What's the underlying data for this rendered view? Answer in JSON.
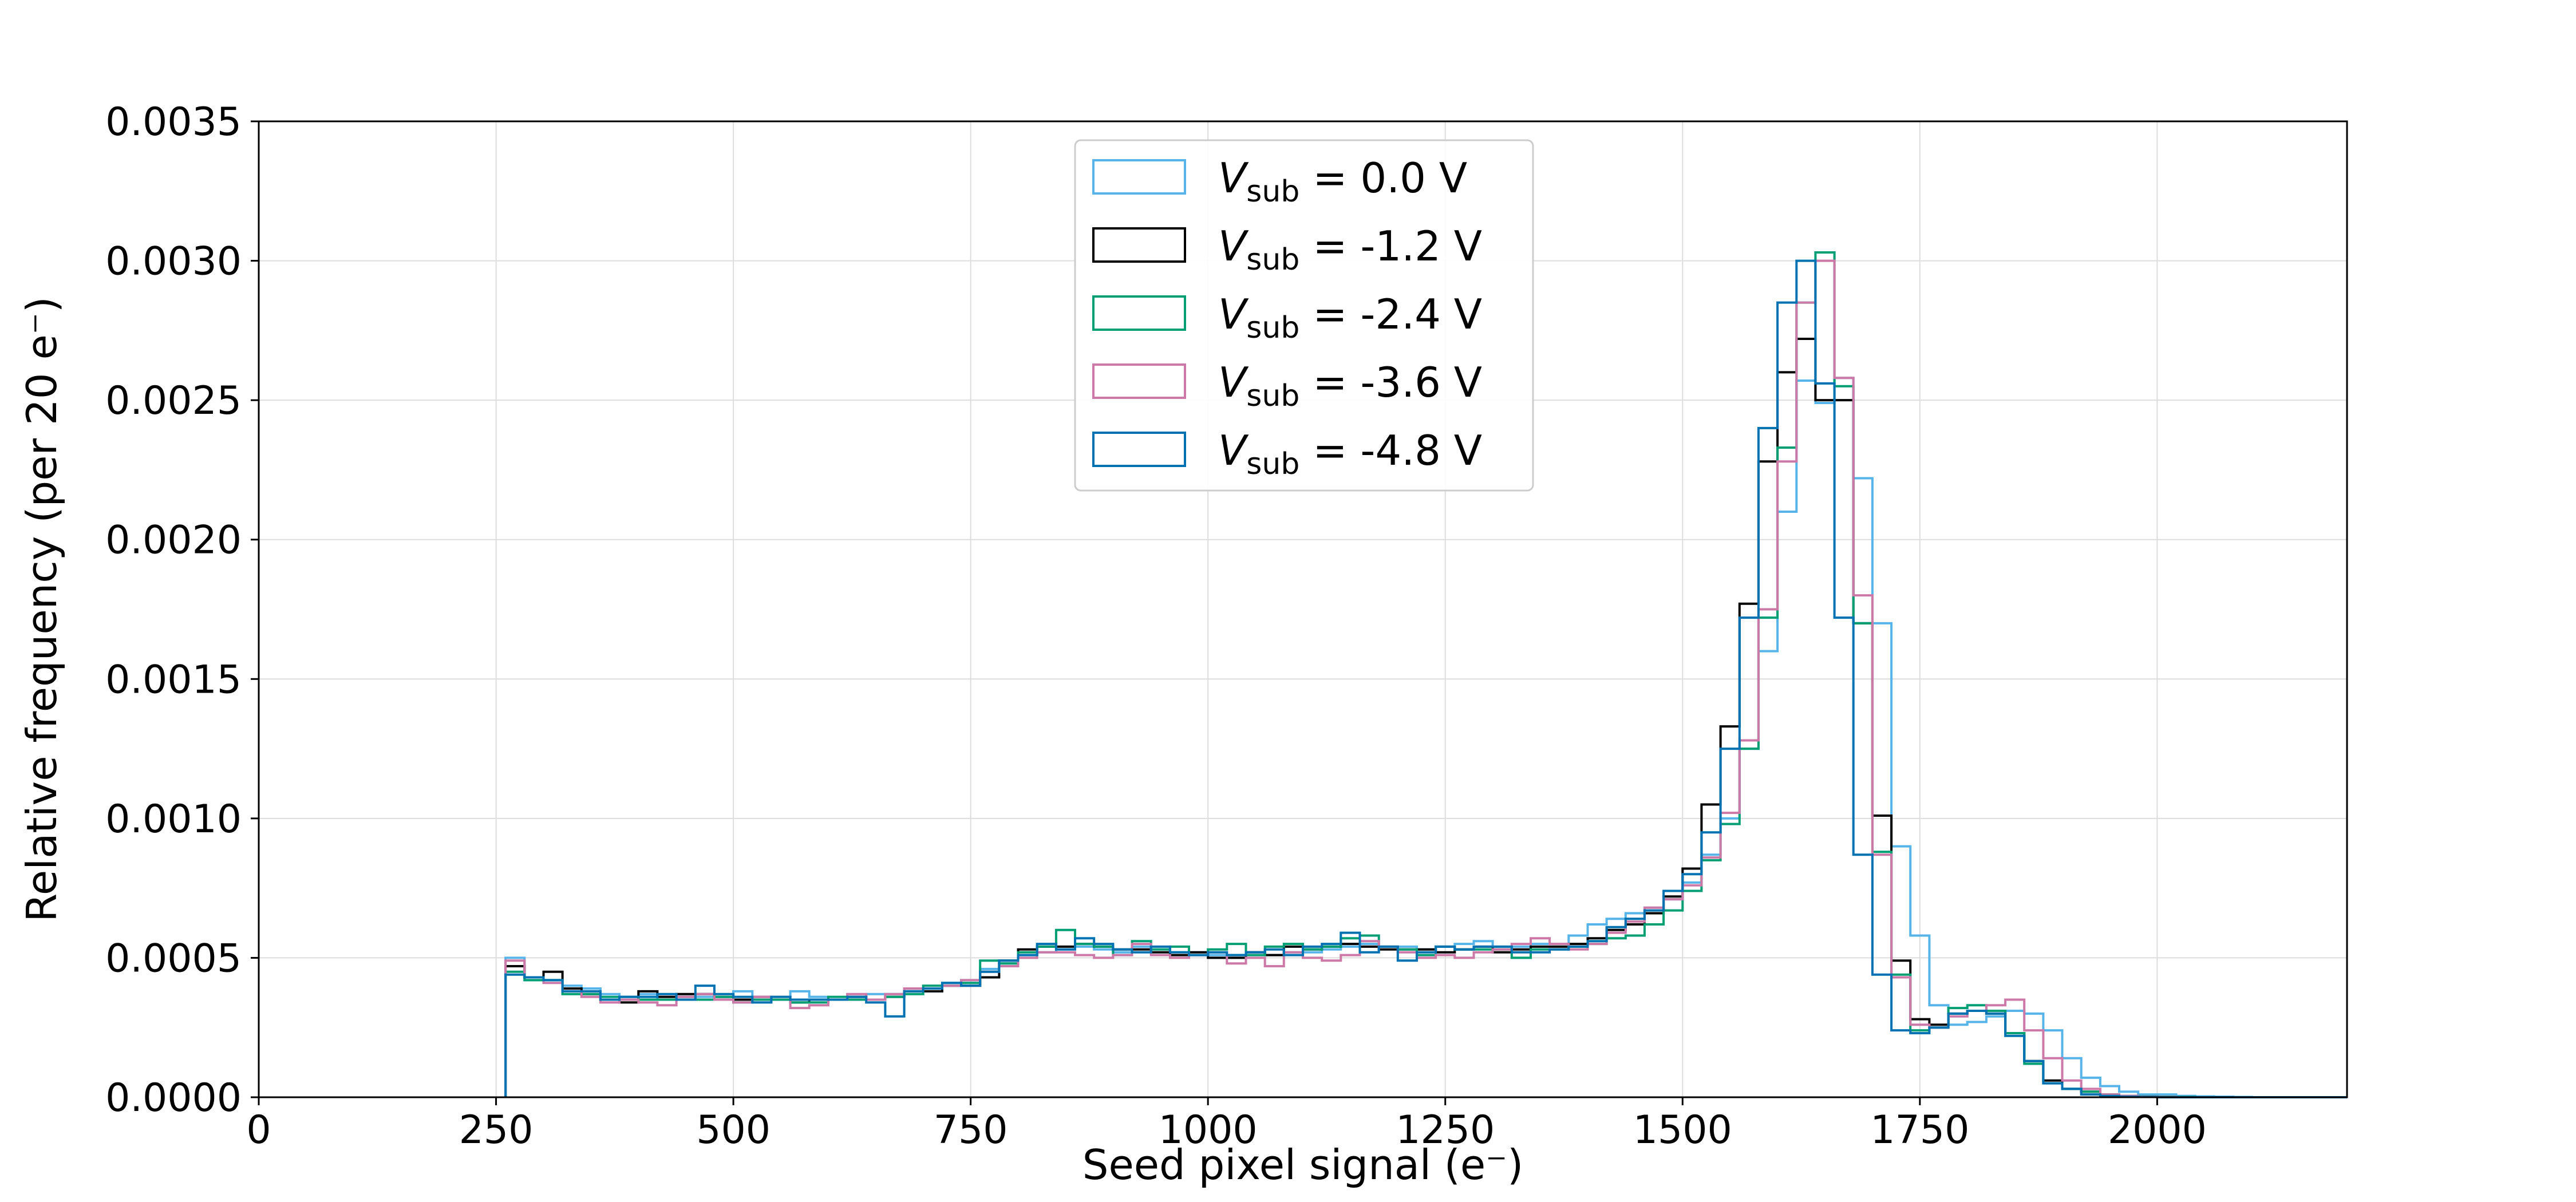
{
  "chart_data": {
    "type": "histogram",
    "xlabel": "Seed pixel signal (e⁻)",
    "ylabel": "Relative frequency (per 20 e⁻)",
    "xlim": [
      0,
      2200
    ],
    "ylim": [
      0,
      0.0035
    ],
    "bin_width": 20,
    "grid": true,
    "legend_position": "top-center",
    "x_ticks": [
      0,
      250,
      500,
      750,
      1000,
      1250,
      1500,
      1750,
      2000
    ],
    "x_tick_labels": [
      "0",
      "250",
      "500",
      "750",
      "1000",
      "1250",
      "1500",
      "1750",
      "2000"
    ],
    "y_ticks": [
      0,
      0.0005,
      0.001,
      0.0015,
      0.002,
      0.0025,
      0.003,
      0.0035
    ],
    "y_tick_labels": [
      "0.0000",
      "0.0005",
      "0.0010",
      "0.0015",
      "0.0020",
      "0.0025",
      "0.0030",
      "0.0035"
    ],
    "x_edges": [
      260,
      280,
      300,
      320,
      340,
      360,
      380,
      400,
      420,
      440,
      460,
      480,
      500,
      520,
      540,
      560,
      580,
      600,
      620,
      640,
      660,
      680,
      700,
      720,
      740,
      760,
      780,
      800,
      820,
      840,
      860,
      880,
      900,
      920,
      940,
      960,
      980,
      1000,
      1020,
      1040,
      1060,
      1080,
      1100,
      1120,
      1140,
      1160,
      1180,
      1200,
      1220,
      1240,
      1260,
      1280,
      1300,
      1320,
      1340,
      1360,
      1380,
      1400,
      1420,
      1440,
      1460,
      1480,
      1500,
      1520,
      1540,
      1560,
      1580,
      1600,
      1620,
      1640,
      1660,
      1680,
      1700,
      1720,
      1740,
      1760,
      1780,
      1800,
      1820,
      1840,
      1860,
      1880,
      1900,
      1920,
      1940,
      1960,
      1980,
      2000,
      2020,
      2040,
      2060,
      2080,
      2100,
      2120,
      2140,
      2160,
      2180,
      2200
    ],
    "series": [
      {
        "name": "V_sub = 0.0 V",
        "label_symbol": "V",
        "label_sub": "sub",
        "label_value": " = 0.0 V",
        "color": "#56b4e9",
        "values": [
          0.0005,
          0.00042,
          0.00042,
          0.0004,
          0.00039,
          0.00037,
          0.00036,
          0.00037,
          0.00035,
          0.00036,
          0.00036,
          0.00036,
          0.00038,
          0.00036,
          0.00035,
          0.00038,
          0.00036,
          0.00035,
          0.00036,
          0.00037,
          0.00037,
          0.00038,
          0.00039,
          0.00041,
          0.00042,
          0.00046,
          0.00048,
          0.00051,
          0.00052,
          0.00053,
          0.00054,
          0.00053,
          0.00052,
          0.00054,
          0.00053,
          0.00052,
          0.00052,
          0.00051,
          0.00051,
          0.00052,
          0.00051,
          0.00052,
          0.00052,
          0.00053,
          0.00054,
          0.00055,
          0.00054,
          0.00054,
          0.00053,
          0.00054,
          0.00055,
          0.00056,
          0.00054,
          0.00054,
          0.00055,
          0.00055,
          0.00058,
          0.00062,
          0.00064,
          0.00066,
          0.00068,
          0.00071,
          0.00077,
          0.00087,
          0.001,
          0.00125,
          0.0016,
          0.0021,
          0.00257,
          0.00249,
          0.00258,
          0.00222,
          0.0017,
          0.0009,
          0.00058,
          0.00033,
          0.00026,
          0.00027,
          0.00029,
          0.00031,
          0.0003,
          0.00024,
          0.00014,
          7e-05,
          4e-05,
          2e-05,
          1e-05,
          1e-05,
          5e-06,
          3e-06,
          2e-06,
          1e-06,
          0,
          0,
          0,
          0,
          0
        ]
      },
      {
        "name": "V_sub = -1.2 V",
        "label_symbol": "V",
        "label_sub": "sub",
        "label_value": " = -1.2 V",
        "color": "#000000",
        "values": [
          0.00047,
          0.00043,
          0.00045,
          0.00039,
          0.00037,
          0.00035,
          0.00034,
          0.00038,
          0.00036,
          0.00037,
          0.00037,
          0.00036,
          0.00035,
          0.00036,
          0.00035,
          0.00034,
          0.00035,
          0.00035,
          0.00036,
          0.00035,
          0.00036,
          0.00038,
          0.00038,
          0.0004,
          0.0004,
          0.00043,
          0.00049,
          0.00053,
          0.00054,
          0.00054,
          0.00055,
          0.00054,
          0.00053,
          0.00053,
          0.00052,
          0.00051,
          0.00052,
          0.0005,
          0.0005,
          0.00052,
          0.00051,
          0.00054,
          0.00053,
          0.00054,
          0.00055,
          0.00054,
          0.00053,
          0.00053,
          0.00053,
          0.00052,
          0.00053,
          0.00054,
          0.00052,
          0.00053,
          0.00054,
          0.00054,
          0.00055,
          0.00057,
          0.0006,
          0.00062,
          0.00066,
          0.00072,
          0.00082,
          0.00105,
          0.00133,
          0.00177,
          0.00228,
          0.0026,
          0.00272,
          0.0025,
          0.0025,
          0.0017,
          0.00101,
          0.00049,
          0.00028,
          0.00026,
          0.0003,
          0.00031,
          0.0003,
          0.00023,
          0.00013,
          6e-05,
          3e-05,
          2e-05,
          1e-05,
          5e-06,
          3e-06,
          2e-06,
          1e-06,
          0,
          0,
          0,
          0,
          0,
          0,
          0,
          0
        ]
      },
      {
        "name": "V_sub = -2.4 V",
        "label_symbol": "V",
        "label_sub": "sub",
        "label_value": " = -2.4 V",
        "color": "#009e73",
        "values": [
          0.00045,
          0.00042,
          0.00042,
          0.00037,
          0.00037,
          0.00036,
          0.00036,
          0.00035,
          0.00035,
          0.00036,
          0.00035,
          0.00036,
          0.00034,
          0.00035,
          0.00035,
          0.00034,
          0.00034,
          0.00036,
          0.00035,
          0.00035,
          0.00036,
          0.00037,
          0.0004,
          0.0004,
          0.00041,
          0.00049,
          0.00048,
          0.00052,
          0.00054,
          0.0006,
          0.00055,
          0.00054,
          0.00051,
          0.00056,
          0.00053,
          0.00054,
          0.00051,
          0.00053,
          0.00055,
          0.00051,
          0.00054,
          0.00055,
          0.00053,
          0.00054,
          0.00057,
          0.00058,
          0.00054,
          0.00053,
          0.00051,
          0.00054,
          0.00053,
          0.00053,
          0.00053,
          0.0005,
          0.00053,
          0.00053,
          0.00054,
          0.00055,
          0.00057,
          0.00058,
          0.00062,
          0.00067,
          0.00074,
          0.00085,
          0.00098,
          0.00125,
          0.00172,
          0.00233,
          0.00285,
          0.00303,
          0.00255,
          0.0017,
          0.00088,
          0.00044,
          0.00024,
          0.00025,
          0.00032,
          0.00033,
          0.00031,
          0.00023,
          0.00012,
          5e-05,
          3e-05,
          2e-05,
          1e-05,
          5e-06,
          3e-06,
          2e-06,
          1e-06,
          0,
          0,
          0,
          0,
          0,
          0,
          0,
          0
        ]
      },
      {
        "name": "V_sub = -3.6 V",
        "label_symbol": "V",
        "label_sub": "sub",
        "label_value": " = -3.6 V",
        "color": "#cc79a7",
        "values": [
          0.00049,
          0.00043,
          0.00041,
          0.00038,
          0.00036,
          0.00034,
          0.00035,
          0.00034,
          0.00033,
          0.00036,
          0.00037,
          0.00035,
          0.00034,
          0.00036,
          0.00036,
          0.00032,
          0.00033,
          0.00035,
          0.00037,
          0.00035,
          0.00037,
          0.00039,
          0.00039,
          0.0004,
          0.00042,
          0.00045,
          0.00047,
          0.0005,
          0.00052,
          0.00052,
          0.00051,
          0.0005,
          0.00051,
          0.00055,
          0.00051,
          0.0005,
          0.00051,
          0.00052,
          0.00048,
          0.0005,
          0.00047,
          0.00052,
          0.0005,
          0.00049,
          0.00051,
          0.00056,
          0.00054,
          0.00052,
          0.0005,
          0.00051,
          0.0005,
          0.00052,
          0.00053,
          0.00055,
          0.00057,
          0.00055,
          0.00053,
          0.00055,
          0.00059,
          0.00063,
          0.00068,
          0.00071,
          0.00076,
          0.00086,
          0.00102,
          0.00128,
          0.00175,
          0.00228,
          0.00285,
          0.003,
          0.00258,
          0.0018,
          0.00087,
          0.00043,
          0.00026,
          0.00025,
          0.00029,
          0.00031,
          0.00033,
          0.00035,
          0.00024,
          0.00014,
          6e-05,
          3e-05,
          1e-05,
          5e-06,
          2e-06,
          1e-06,
          0,
          0,
          0,
          0,
          0,
          0,
          0,
          0,
          0
        ]
      },
      {
        "name": "V_sub = -4.8 V",
        "label_symbol": "V",
        "label_sub": "sub",
        "label_value": " = -4.8 V",
        "color": "#0072b2",
        "values": [
          0.00044,
          0.00043,
          0.00042,
          0.00038,
          0.00038,
          0.00035,
          0.00036,
          0.00036,
          0.00037,
          0.00035,
          0.0004,
          0.00037,
          0.00036,
          0.00034,
          0.00036,
          0.00035,
          0.00035,
          0.00035,
          0.00036,
          0.00034,
          0.00029,
          0.00038,
          0.00039,
          0.00041,
          0.0004,
          0.00045,
          0.00049,
          0.00051,
          0.00055,
          0.00053,
          0.00057,
          0.00055,
          0.00053,
          0.00052,
          0.00054,
          0.00052,
          0.00051,
          0.00052,
          0.00051,
          0.00052,
          0.00053,
          0.00051,
          0.00054,
          0.00055,
          0.00059,
          0.00052,
          0.00054,
          0.00049,
          0.00052,
          0.00054,
          0.00053,
          0.00054,
          0.00054,
          0.00052,
          0.00052,
          0.00053,
          0.00054,
          0.00056,
          0.00061,
          0.00064,
          0.00067,
          0.00074,
          0.0008,
          0.00095,
          0.00125,
          0.00172,
          0.0024,
          0.00285,
          0.003,
          0.00256,
          0.00172,
          0.00087,
          0.00044,
          0.00024,
          0.00023,
          0.00025,
          0.0003,
          0.00031,
          0.0003,
          0.00022,
          0.00013,
          5e-05,
          3e-05,
          1e-05,
          5e-06,
          2e-06,
          1e-06,
          0,
          0,
          0,
          0,
          0,
          0,
          0,
          0,
          0,
          0
        ]
      }
    ]
  }
}
